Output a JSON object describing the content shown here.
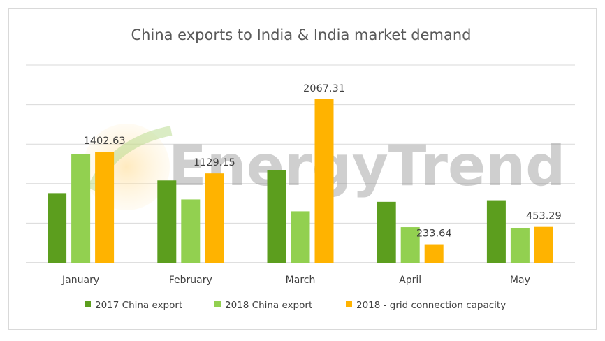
{
  "chart_data": {
    "type": "bar",
    "title": "China exports to India & India market demand",
    "categories": [
      "January",
      "February",
      "March",
      "April",
      "May"
    ],
    "series": [
      {
        "name": "2017 China export",
        "values": [
          880,
          1040,
          1170,
          770,
          790
        ],
        "color": "#5c9e1e"
      },
      {
        "name": "2018 China export",
        "values": [
          1370,
          800,
          650,
          450,
          440
        ],
        "color": "#92d050"
      },
      {
        "name": "2018 - grid connection capacity",
        "values": [
          1402.63,
          1129.15,
          2067.31,
          233.64,
          453.29
        ],
        "color": "#ffb300"
      }
    ],
    "data_labels": {
      "series_index": 2,
      "values": [
        "1402.63",
        "1129.15",
        "2067.31",
        "233.64",
        "453.29"
      ]
    },
    "ylim": [
      0,
      2500
    ],
    "grid": true,
    "legend": "bottom"
  },
  "watermark": {
    "text": "EnergyTrend"
  }
}
